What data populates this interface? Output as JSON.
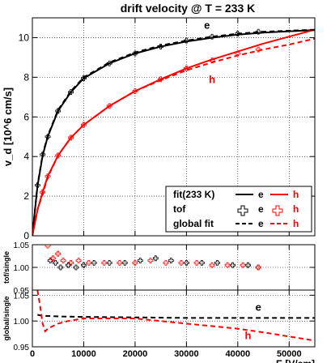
{
  "chart_data": [
    {
      "type": "scatter",
      "title": "drift velocity @ T = 233 K",
      "ylabel": "v_d [10^6 cm/s]",
      "xlim": [
        0,
        55000
      ],
      "ylim": [
        0,
        11
      ],
      "yticks": [
        0,
        2,
        4,
        6,
        8,
        10
      ],
      "grid": true,
      "legend_position": "bottom-right",
      "series": [
        {
          "name": "e",
          "kind": "points",
          "marker": "cross",
          "color": "#000000",
          "x": [
            1000,
            2000,
            3000,
            5000,
            7500,
            10000,
            15000,
            20000,
            25000,
            30000,
            35000,
            40000,
            44000
          ],
          "y": [
            2.55,
            4.1,
            5.0,
            6.3,
            7.25,
            7.95,
            8.7,
            9.2,
            9.55,
            9.85,
            10.05,
            10.2,
            10.3
          ]
        },
        {
          "name": "h",
          "kind": "points",
          "marker": "cross",
          "color": "#ff0000",
          "x": [
            2000,
            3000,
            5000,
            7500,
            10000,
            15000,
            20000,
            25000,
            30000,
            35000,
            40000,
            44000
          ],
          "y": [
            2.2,
            3.0,
            4.05,
            4.95,
            5.6,
            6.55,
            7.3,
            7.9,
            8.45,
            8.85,
            9.2,
            9.4
          ]
        },
        {
          "name": "e",
          "kind": "fit",
          "style": "solid",
          "color": "#000000",
          "x": [
            0,
            500,
            1000,
            2000,
            3000,
            5000,
            7500,
            10000,
            15000,
            20000,
            25000,
            30000,
            35000,
            40000,
            45000,
            50000,
            55000
          ],
          "y": [
            0,
            1.3,
            2.5,
            4.05,
            5.0,
            6.3,
            7.25,
            7.95,
            8.7,
            9.2,
            9.55,
            9.8,
            10.0,
            10.15,
            10.25,
            10.32,
            10.38
          ]
        },
        {
          "name": "h",
          "kind": "fit",
          "style": "solid",
          "color": "#ff0000",
          "x": [
            0,
            1000,
            2000,
            3000,
            5000,
            7500,
            10000,
            15000,
            20000,
            25000,
            30000,
            35000,
            40000,
            45000,
            50000,
            55000
          ],
          "y": [
            0,
            1.3,
            2.2,
            3.0,
            4.05,
            4.95,
            5.6,
            6.55,
            7.3,
            7.9,
            8.45,
            8.9,
            9.3,
            9.7,
            10.05,
            10.4
          ]
        },
        {
          "name": "e",
          "kind": "global fit",
          "style": "dashed",
          "color": "#000000",
          "x": [
            0,
            1000,
            2000,
            3000,
            5000,
            7500,
            10000,
            15000,
            20000,
            25000,
            30000,
            35000,
            40000,
            45000,
            50000,
            55000
          ],
          "y": [
            0,
            2.55,
            4.1,
            5.05,
            6.35,
            7.3,
            8.0,
            8.75,
            9.25,
            9.6,
            9.85,
            10.05,
            10.2,
            10.3,
            10.35,
            10.4
          ]
        },
        {
          "name": "h",
          "kind": "global fit",
          "style": "dashed",
          "color": "#ff0000",
          "x": [
            0,
            1000,
            2000,
            3000,
            5000,
            7500,
            10000,
            15000,
            20000,
            25000,
            30000,
            35000,
            40000,
            45000,
            50000,
            55000
          ],
          "y": [
            0,
            1.3,
            2.1,
            2.95,
            4.05,
            4.95,
            5.6,
            6.55,
            7.3,
            7.85,
            8.35,
            8.75,
            9.1,
            9.4,
            9.65,
            9.95
          ]
        }
      ],
      "annotations": [
        {
          "text": "e",
          "x": 34000,
          "y": 10.45,
          "color": "#000000"
        },
        {
          "text": "h",
          "x": 35000,
          "y": 7.7,
          "color": "#ff0000"
        }
      ],
      "legend": {
        "rows": [
          {
            "label": "fit(233 K)",
            "e": "e",
            "h": "h",
            "style": "solid"
          },
          {
            "label": "tof",
            "e": "e",
            "h": "h",
            "style": "marker"
          },
          {
            "label": "global fit",
            "e": "e",
            "h": "h",
            "style": "dashed"
          }
        ]
      }
    },
    {
      "type": "scatter",
      "ylabel": "tof/single",
      "xlim": [
        0,
        55000
      ],
      "ylim": [
        0.95,
        1.05
      ],
      "yticks": [
        0.95,
        1.0,
        1.05
      ],
      "tick_labels": [
        "0.95",
        "1.00",
        "1.05"
      ],
      "grid": true,
      "series": [
        {
          "name": "e",
          "marker": "cross",
          "color": "#000000",
          "x": [
            3500,
            4500,
            5500,
            7000,
            8500,
            10000,
            12000,
            15000,
            18000,
            21000,
            24000,
            27000,
            30000,
            33000,
            36000,
            39000,
            42000,
            44000
          ],
          "y": [
            1.015,
            1.01,
            1.0,
            1.005,
            1.0,
            1.005,
            1.01,
            1.01,
            1.01,
            1.015,
            1.02,
            1.015,
            1.01,
            1.01,
            1.01,
            1.005,
            1.005,
            1.0
          ]
        },
        {
          "name": "h",
          "marker": "cross",
          "color": "#ff0000",
          "x": [
            3000,
            4000,
            5000,
            6000,
            7500,
            9000,
            11000,
            14000,
            17000,
            20000,
            23000,
            26000,
            29000,
            32000,
            35000,
            38000,
            41000,
            44000
          ],
          "y": [
            1.048,
            1.02,
            1.03,
            1.015,
            1.01,
            1.015,
            1.01,
            1.01,
            1.01,
            1.01,
            1.015,
            1.01,
            1.01,
            1.01,
            1.005,
            1.005,
            1.005,
            1.0
          ]
        }
      ]
    },
    {
      "type": "line",
      "ylabel": "global/single",
      "xlabel": "E [V/cm]",
      "xlim": [
        0,
        55000
      ],
      "ylim": [
        0.95,
        1.06
      ],
      "yticks": [
        0.95,
        1.0,
        1.05
      ],
      "tick_labels": [
        "0.95",
        "1.00",
        "1.05"
      ],
      "xticks": [
        0,
        10000,
        20000,
        30000,
        40000,
        50000
      ],
      "xtick_labels": [
        "0",
        "10000",
        "20000",
        "30000",
        "40000",
        "50000"
      ],
      "grid": true,
      "series": [
        {
          "name": "e",
          "style": "dashed",
          "color": "#000000",
          "x": [
            1000,
            2000,
            5000,
            10000,
            20000,
            30000,
            40000,
            50000,
            55000
          ],
          "y": [
            1.012,
            1.01,
            1.009,
            1.008,
            1.007,
            1.006,
            1.006,
            1.006,
            1.006
          ]
        },
        {
          "name": "h",
          "style": "dashed",
          "color": "#ff0000",
          "x": [
            1000,
            1500,
            2000,
            2500,
            3000,
            4000,
            5000,
            7000,
            10000,
            15000,
            20000,
            25000,
            30000,
            35000,
            40000,
            45000,
            50000,
            55000
          ],
          "y": [
            1.06,
            1.03,
            0.995,
            0.98,
            0.985,
            0.99,
            0.995,
            1.0,
            1.005,
            1.005,
            1.005,
            1.0,
            0.995,
            0.99,
            0.985,
            0.978,
            0.97,
            0.962
          ]
        }
      ],
      "annotations": [
        {
          "text": "e",
          "x": 44000,
          "y": 1.02,
          "color": "#000000"
        },
        {
          "text": "h",
          "x": 42000,
          "y": 0.965,
          "color": "#ff0000"
        }
      ]
    }
  ]
}
